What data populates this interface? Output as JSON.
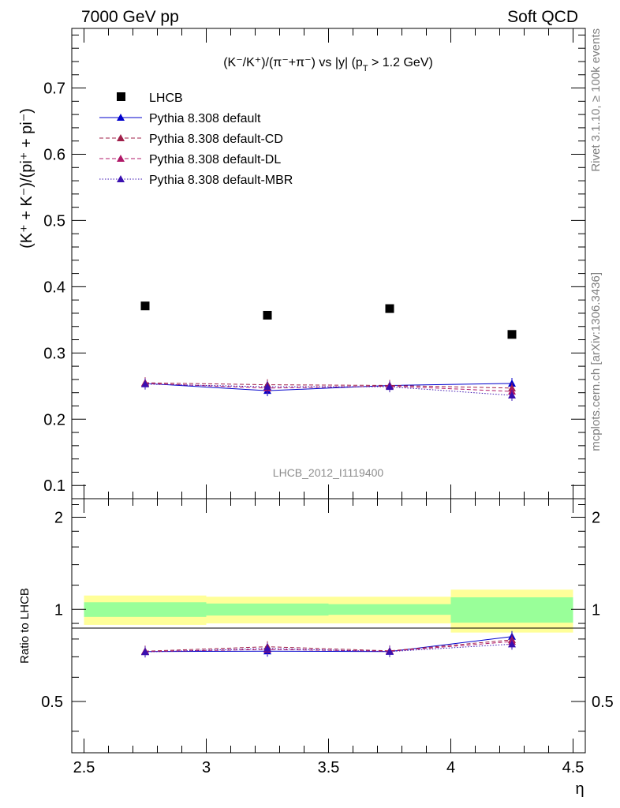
{
  "header": {
    "left": "7000 GeV pp",
    "right": "Soft QCD"
  },
  "side_labels": {
    "rivet": "Rivet 3.1.10, ≥ 100k events",
    "mcplots": "mcplots.cern.ch [arXiv:1306.3436]"
  },
  "watermark": "LHCB_2012_I1119400",
  "chart_data": {
    "type": "scatter",
    "title": "(K⁻/K⁺)/(π⁻+π⁻) vs |y| (p_T > 1.2 GeV)",
    "title_parts": {
      "main": "(K⁻/K⁺)/(π⁻+π⁻) vs |y| (p",
      "sub": "T",
      "tail": " > 1.2 GeV)"
    },
    "xlabel": "η",
    "ylabel": "(K⁺ + K⁻)/(pi⁺ + pi⁻)",
    "ratio_ylabel": "Ratio to LHCB",
    "xlim": [
      2.45,
      4.55
    ],
    "ylim": [
      0.08,
      0.79
    ],
    "ratio_ylim": [
      0.34,
      2.3
    ],
    "xticks": [
      "2.5",
      "3",
      "3.5",
      "4",
      "4.5"
    ],
    "xtick_values": [
      2.5,
      3,
      3.5,
      4,
      4.5
    ],
    "yticks": [
      "0.1",
      "0.2",
      "0.3",
      "0.4",
      "0.5",
      "0.6",
      "0.7"
    ],
    "ytick_values": [
      0.1,
      0.2,
      0.3,
      0.4,
      0.5,
      0.6,
      0.7
    ],
    "ratio_yticks": [
      "0.5",
      "1",
      "2"
    ],
    "ratio_ytick_values": [
      0.5,
      1,
      2
    ],
    "x_bins": [
      [
        2.5,
        3.0
      ],
      [
        3.0,
        3.5
      ],
      [
        3.5,
        4.0
      ],
      [
        4.0,
        4.5
      ]
    ],
    "x": [
      2.75,
      3.25,
      3.75,
      4.25
    ],
    "legend_position": "top-left",
    "data": {
      "name": "LHCB",
      "values": [
        0.371,
        0.357,
        0.367,
        0.328
      ],
      "band_inner": [
        0.055,
        0.045,
        0.04,
        0.095
      ],
      "band_outer": [
        0.11,
        0.1,
        0.1,
        0.16
      ]
    },
    "series": [
      {
        "name": "Pythia 8.308 default",
        "color": "#0000cc",
        "dash": "",
        "values": [
          0.254,
          0.243,
          0.251,
          0.254
        ],
        "ratio": [
          0.728,
          0.73,
          0.728,
          0.815
        ]
      },
      {
        "name": "Pythia 8.308 default-CD",
        "color": "#a0204a",
        "dash": "5,3",
        "values": [
          0.255,
          0.252,
          0.251,
          0.247
        ],
        "ratio": [
          0.73,
          0.755,
          0.732,
          0.795
        ]
      },
      {
        "name": "Pythia 8.308 default-DL",
        "color": "#b01868",
        "dash": "5,3",
        "values": [
          0.254,
          0.247,
          0.25,
          0.242
        ],
        "ratio": [
          0.728,
          0.74,
          0.73,
          0.785
        ]
      },
      {
        "name": "Pythia 8.308 default-MBR",
        "color": "#3a10b0",
        "dash": "1.5,2",
        "values": [
          0.253,
          0.249,
          0.249,
          0.236
        ],
        "ratio": [
          0.726,
          0.745,
          0.728,
          0.77
        ]
      }
    ]
  }
}
